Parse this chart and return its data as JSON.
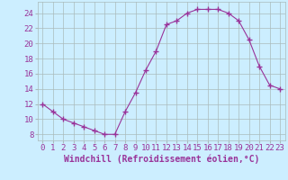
{
  "x": [
    0,
    1,
    2,
    3,
    4,
    5,
    6,
    7,
    8,
    9,
    10,
    11,
    12,
    13,
    14,
    15,
    16,
    17,
    18,
    19,
    20,
    21,
    22,
    23
  ],
  "y": [
    12,
    11,
    10,
    9.5,
    9,
    8.5,
    8,
    8,
    11,
    13.5,
    16.5,
    19,
    22.5,
    23,
    24,
    24.5,
    24.5,
    24.5,
    24,
    23,
    20.5,
    17,
    14.5,
    14
  ],
  "line_color": "#993399",
  "marker": "+",
  "marker_size": 4,
  "marker_linewidth": 1,
  "bg_color": "#cceeff",
  "grid_color": "#aabbbb",
  "xlabel": "Windchill (Refroidissement éolien,°C)",
  "xlabel_fontsize": 7,
  "ytick_vals": [
    8,
    10,
    12,
    14,
    16,
    18,
    20,
    22,
    24
  ],
  "xtick_labels": [
    "0",
    "1",
    "2",
    "3",
    "4",
    "5",
    "6",
    "7",
    "8",
    "9",
    "10",
    "11",
    "12",
    "13",
    "14",
    "15",
    "16",
    "17",
    "18",
    "19",
    "20",
    "21",
    "22",
    "23"
  ],
  "xlim": [
    -0.5,
    23.5
  ],
  "ylim": [
    7.2,
    25.5
  ],
  "tick_color": "#993399",
  "tick_fontsize": 6.5,
  "linewidth": 0.8
}
